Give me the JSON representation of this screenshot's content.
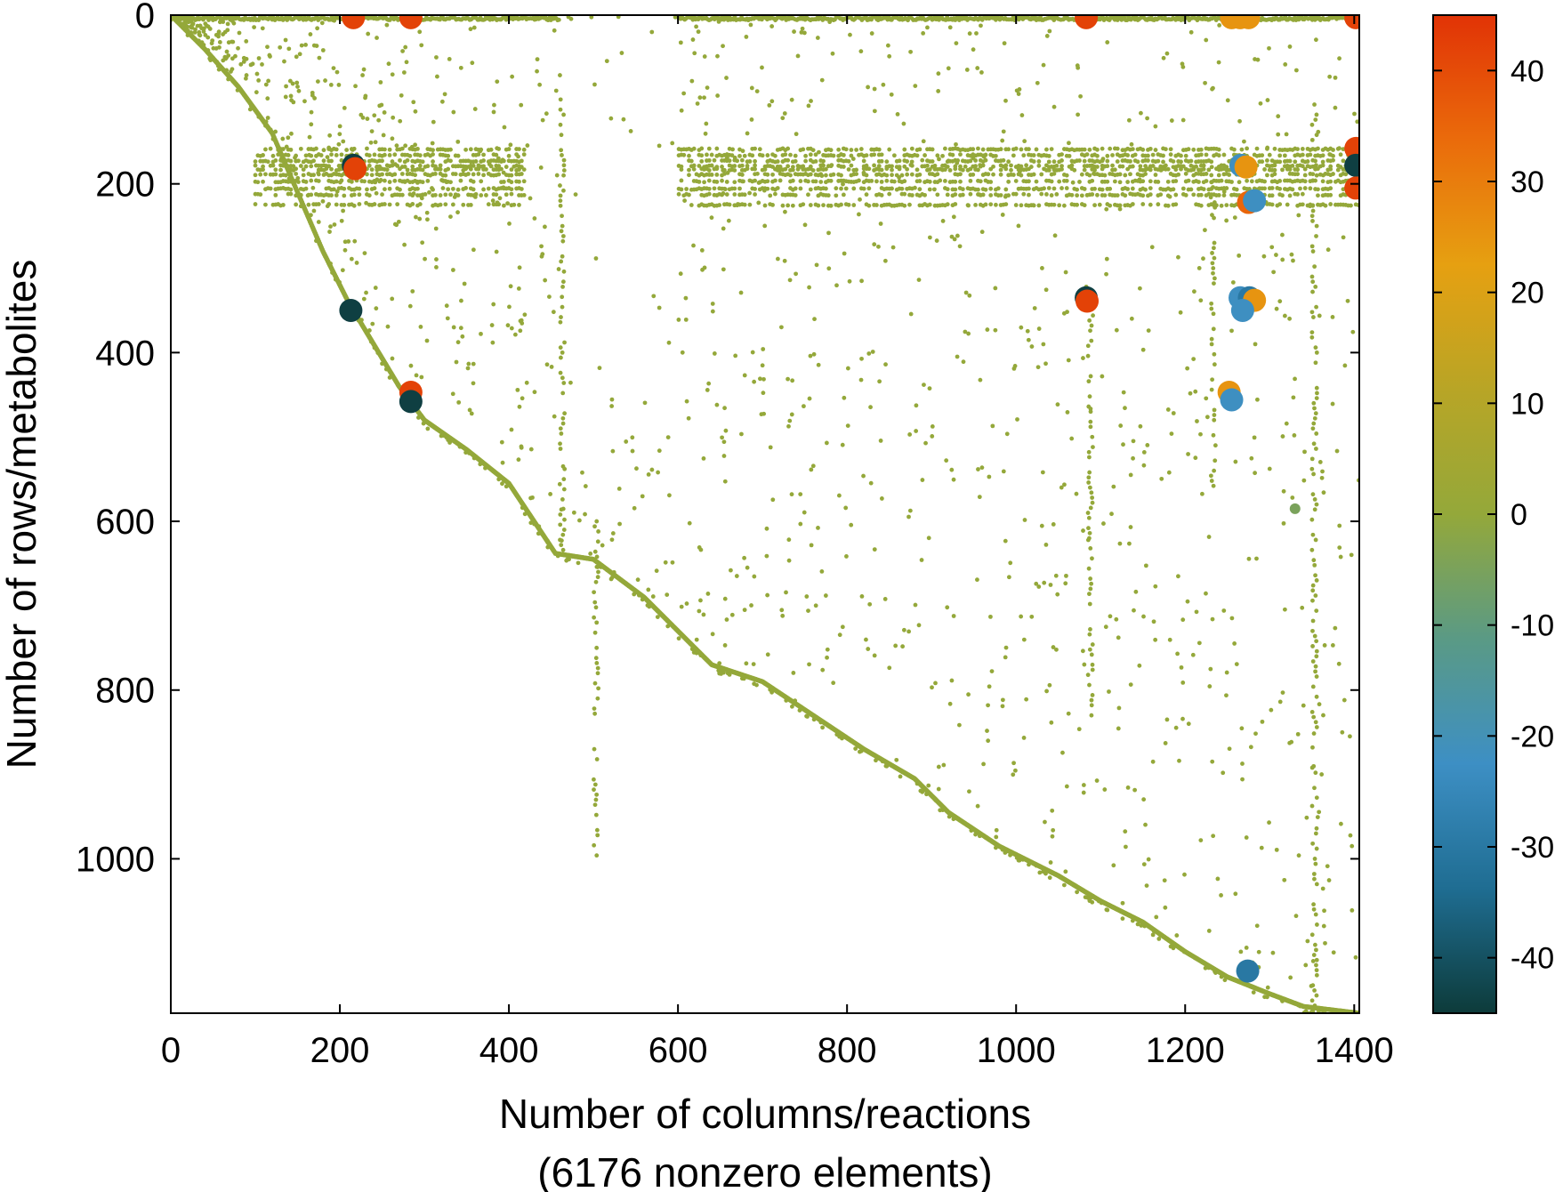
{
  "chart_data": {
    "type": "scatter",
    "title": "",
    "xlabel": "Number of columns/reactions",
    "xlabel_sub": "(6176 nonzero elements)",
    "ylabel": "Number of rows/metabolites",
    "xlim": [
      0,
      1406
    ],
    "ylim": [
      1183,
      0
    ],
    "y_inverted": true,
    "grid": false,
    "x_ticks": [
      "0",
      "200",
      "400",
      "600",
      "800",
      "1000",
      "1200",
      "1400"
    ],
    "y_ticks": [
      "0",
      "200",
      "400",
      "600",
      "800",
      "1000"
    ],
    "colorbar": {
      "range": [
        -45,
        45
      ],
      "ticks": [
        "40",
        "30",
        "20",
        "10",
        "0",
        "-10",
        "-20",
        "-30",
        "-40"
      ],
      "colors": [
        "#0d3b3a",
        "#1f6d92",
        "#3d8fc4",
        "#5a9a85",
        "#94a83a",
        "#b8a526",
        "#e6a011",
        "#ea6b0b",
        "#e13306"
      ]
    },
    "diagonal_trace": [
      [
        0,
        0
      ],
      [
        40,
        40
      ],
      [
        80,
        85
      ],
      [
        120,
        140
      ],
      [
        150,
        210
      ],
      [
        180,
        280
      ],
      [
        210,
        340
      ],
      [
        240,
        390
      ],
      [
        270,
        440
      ],
      [
        300,
        480
      ],
      [
        350,
        515
      ],
      [
        400,
        555
      ],
      [
        455,
        638
      ],
      [
        500,
        645
      ],
      [
        560,
        690
      ],
      [
        610,
        740
      ],
      [
        640,
        770
      ],
      [
        670,
        780
      ],
      [
        700,
        790
      ],
      [
        760,
        830
      ],
      [
        820,
        870
      ],
      [
        880,
        905
      ],
      [
        920,
        945
      ],
      [
        980,
        985
      ],
      [
        1050,
        1020
      ],
      [
        1100,
        1050
      ],
      [
        1150,
        1075
      ],
      [
        1200,
        1110
      ],
      [
        1250,
        1140
      ],
      [
        1300,
        1160
      ],
      [
        1340,
        1175
      ],
      [
        1406,
        1183
      ]
    ],
    "large_points": [
      {
        "x": 216,
        "y": 3,
        "v": 42
      },
      {
        "x": 284,
        "y": 3,
        "v": 42
      },
      {
        "x": 1083,
        "y": 3,
        "v": 42
      },
      {
        "x": 1402,
        "y": 3,
        "v": 42
      },
      {
        "x": 1255,
        "y": 3,
        "v": 25
      },
      {
        "x": 1265,
        "y": 3,
        "v": 25
      },
      {
        "x": 1275,
        "y": 3,
        "v": 25
      },
      {
        "x": 216,
        "y": 178,
        "v": -44
      },
      {
        "x": 218,
        "y": 182,
        "v": 42
      },
      {
        "x": 1402,
        "y": 158,
        "v": 42
      },
      {
        "x": 1402,
        "y": 178,
        "v": -44
      },
      {
        "x": 1402,
        "y": 205,
        "v": 42
      },
      {
        "x": 1266,
        "y": 178,
        "v": -22
      },
      {
        "x": 1272,
        "y": 180,
        "v": 25
      },
      {
        "x": 1275,
        "y": 222,
        "v": 35
      },
      {
        "x": 1282,
        "y": 220,
        "v": -22
      },
      {
        "x": 1083,
        "y": 335,
        "v": -44
      },
      {
        "x": 1084,
        "y": 339,
        "v": 42
      },
      {
        "x": 1265,
        "y": 335,
        "v": -22
      },
      {
        "x": 1276,
        "y": 335,
        "v": -30
      },
      {
        "x": 1282,
        "y": 338,
        "v": 25
      },
      {
        "x": 1268,
        "y": 350,
        "v": -22
      },
      {
        "x": 213,
        "y": 350,
        "v": -44
      },
      {
        "x": 284,
        "y": 447,
        "v": 42
      },
      {
        "x": 284,
        "y": 458,
        "v": -44
      },
      {
        "x": 1252,
        "y": 447,
        "v": 25
      },
      {
        "x": 1255,
        "y": 456,
        "v": -22
      },
      {
        "x": 1274,
        "y": 1133,
        "v": -30
      }
    ],
    "small_dot_value": 0,
    "medium_points": [
      {
        "x": 1330,
        "y": 585,
        "v": -5
      }
    ]
  }
}
